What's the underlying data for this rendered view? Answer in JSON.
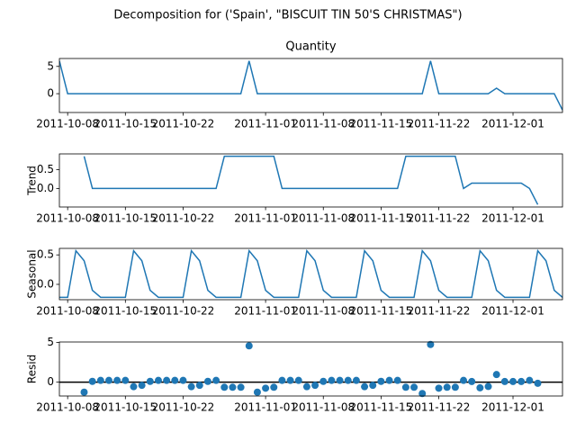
{
  "title": "Decomposition for ('Spain', \"BISCUIT TIN 50'S CHRISTMAS\")",
  "chart_data": [
    {
      "type": "line",
      "title": "Quantity",
      "color": "#1f77b4",
      "x": [
        "2011-10-07",
        "2011-10-08",
        "2011-10-09",
        "2011-10-10",
        "2011-10-11",
        "2011-10-12",
        "2011-10-13",
        "2011-10-14",
        "2011-10-15",
        "2011-10-16",
        "2011-10-17",
        "2011-10-18",
        "2011-10-19",
        "2011-10-20",
        "2011-10-21",
        "2011-10-22",
        "2011-10-23",
        "2011-10-24",
        "2011-10-25",
        "2011-10-26",
        "2011-10-27",
        "2011-10-28",
        "2011-10-29",
        "2011-10-30",
        "2011-10-31",
        "2011-11-01",
        "2011-11-02",
        "2011-11-03",
        "2011-11-04",
        "2011-11-05",
        "2011-11-06",
        "2011-11-07",
        "2011-11-08",
        "2011-11-09",
        "2011-11-10",
        "2011-11-11",
        "2011-11-12",
        "2011-11-13",
        "2011-11-14",
        "2011-11-15",
        "2011-11-16",
        "2011-11-17",
        "2011-11-18",
        "2011-11-19",
        "2011-11-20",
        "2011-11-21",
        "2011-11-22",
        "2011-11-23",
        "2011-11-24",
        "2011-11-25",
        "2011-11-26",
        "2011-11-27",
        "2011-11-28",
        "2011-11-29",
        "2011-11-30",
        "2011-12-01",
        "2011-12-02",
        "2011-12-03",
        "2011-12-04",
        "2011-12-05",
        "2011-12-06",
        "2011-12-07"
      ],
      "values": [
        6,
        0,
        0,
        0,
        0,
        0,
        0,
        0,
        0,
        0,
        0,
        0,
        0,
        0,
        0,
        0,
        0,
        0,
        0,
        0,
        0,
        0,
        0,
        6,
        0,
        0,
        0,
        0,
        0,
        0,
        0,
        0,
        0,
        0,
        0,
        0,
        0,
        0,
        0,
        0,
        0,
        0,
        0,
        0,
        0,
        6,
        0,
        0,
        0,
        0,
        0,
        0,
        0,
        1,
        0,
        0,
        0,
        0,
        0,
        0,
        0,
        -3
      ],
      "xlim": [
        "2011-10-07",
        "2011-12-07"
      ],
      "ylim": [
        -3.45,
        6.45
      ],
      "xticks": [
        "2011-10-08",
        "2011-10-15",
        "2011-10-22",
        "2011-11-01",
        "2011-11-08",
        "2011-11-15",
        "2011-11-22",
        "2011-12-01"
      ],
      "yticks": [
        0,
        5
      ]
    },
    {
      "type": "line",
      "ylabel": "Trend",
      "color": "#1f77b4",
      "x": [
        "2011-10-07",
        "2011-10-08",
        "2011-10-09",
        "2011-10-10",
        "2011-10-11",
        "2011-10-12",
        "2011-10-13",
        "2011-10-14",
        "2011-10-15",
        "2011-10-16",
        "2011-10-17",
        "2011-10-18",
        "2011-10-19",
        "2011-10-20",
        "2011-10-21",
        "2011-10-22",
        "2011-10-23",
        "2011-10-24",
        "2011-10-25",
        "2011-10-26",
        "2011-10-27",
        "2011-10-28",
        "2011-10-29",
        "2011-10-30",
        "2011-10-31",
        "2011-11-01",
        "2011-11-02",
        "2011-11-03",
        "2011-11-04",
        "2011-11-05",
        "2011-11-06",
        "2011-11-07",
        "2011-11-08",
        "2011-11-09",
        "2011-11-10",
        "2011-11-11",
        "2011-11-12",
        "2011-11-13",
        "2011-11-14",
        "2011-11-15",
        "2011-11-16",
        "2011-11-17",
        "2011-11-18",
        "2011-11-19",
        "2011-11-20",
        "2011-11-21",
        "2011-11-22",
        "2011-11-23",
        "2011-11-24",
        "2011-11-25",
        "2011-11-26",
        "2011-11-27",
        "2011-11-28",
        "2011-11-29",
        "2011-11-30",
        "2011-12-01",
        "2011-12-02",
        "2011-12-03",
        "2011-12-04",
        "2011-12-05",
        "2011-12-06",
        "2011-12-07"
      ],
      "values": [
        null,
        null,
        null,
        0.857,
        0,
        0,
        0,
        0,
        0,
        0,
        0,
        0,
        0,
        0,
        0,
        0,
        0,
        0,
        0,
        0,
        0.857,
        0.857,
        0.857,
        0.857,
        0.857,
        0.857,
        0.857,
        0,
        0,
        0,
        0,
        0,
        0,
        0,
        0,
        0,
        0,
        0,
        0,
        0,
        0,
        0,
        0.857,
        0.857,
        0.857,
        0.857,
        0.857,
        0.857,
        0.857,
        0,
        0.143,
        0.143,
        0.143,
        0.143,
        0.143,
        0.143,
        0.143,
        0,
        -0.429,
        null,
        null,
        null
      ],
      "xlim": [
        "2011-10-07",
        "2011-12-07"
      ],
      "ylim": [
        -0.493,
        0.921
      ],
      "xticks": [
        "2011-10-08",
        "2011-10-15",
        "2011-10-22",
        "2011-11-01",
        "2011-11-08",
        "2011-11-15",
        "2011-11-22",
        "2011-12-01"
      ],
      "yticks": [
        {
          "value": 0,
          "label": "0.0"
        },
        {
          "value": 0.5,
          "label": "0.5"
        }
      ]
    },
    {
      "type": "line",
      "ylabel": "Seasonal",
      "color": "#1f77b4",
      "x": [
        "2011-10-07",
        "2011-10-08",
        "2011-10-09",
        "2011-10-10",
        "2011-10-11",
        "2011-10-12",
        "2011-10-13",
        "2011-10-14",
        "2011-10-15",
        "2011-10-16",
        "2011-10-17",
        "2011-10-18",
        "2011-10-19",
        "2011-10-20",
        "2011-10-21",
        "2011-10-22",
        "2011-10-23",
        "2011-10-24",
        "2011-10-25",
        "2011-10-26",
        "2011-10-27",
        "2011-10-28",
        "2011-10-29",
        "2011-10-30",
        "2011-10-31",
        "2011-11-01",
        "2011-11-02",
        "2011-11-03",
        "2011-11-04",
        "2011-11-05",
        "2011-11-06",
        "2011-11-07",
        "2011-11-08",
        "2011-11-09",
        "2011-11-10",
        "2011-11-11",
        "2011-11-12",
        "2011-11-13",
        "2011-11-14",
        "2011-11-15",
        "2011-11-16",
        "2011-11-17",
        "2011-11-18",
        "2011-11-19",
        "2011-11-20",
        "2011-11-21",
        "2011-11-22",
        "2011-11-23",
        "2011-11-24",
        "2011-11-25",
        "2011-11-26",
        "2011-11-27",
        "2011-11-28",
        "2011-11-29",
        "2011-11-30",
        "2011-12-01",
        "2011-12-02",
        "2011-12-03",
        "2011-12-04",
        "2011-12-05",
        "2011-12-06",
        "2011-12-07"
      ],
      "values": [
        -0.22,
        -0.22,
        0.57,
        0.4,
        -0.1,
        -0.22,
        -0.22,
        -0.22,
        -0.22,
        0.57,
        0.4,
        -0.1,
        -0.22,
        -0.22,
        -0.22,
        -0.22,
        0.57,
        0.4,
        -0.1,
        -0.22,
        -0.22,
        -0.22,
        -0.22,
        0.57,
        0.4,
        -0.1,
        -0.22,
        -0.22,
        -0.22,
        -0.22,
        0.57,
        0.4,
        -0.1,
        -0.22,
        -0.22,
        -0.22,
        -0.22,
        0.57,
        0.4,
        -0.1,
        -0.22,
        -0.22,
        -0.22,
        -0.22,
        0.57,
        0.4,
        -0.1,
        -0.22,
        -0.22,
        -0.22,
        -0.22,
        0.57,
        0.4,
        -0.1,
        -0.22,
        -0.22,
        -0.22,
        -0.22,
        0.57,
        0.4,
        -0.1,
        -0.22
      ],
      "xlim": [
        "2011-10-07",
        "2011-12-07"
      ],
      "ylim": [
        -0.26,
        0.61
      ],
      "xticks": [
        "2011-10-08",
        "2011-10-15",
        "2011-10-22",
        "2011-11-01",
        "2011-11-08",
        "2011-11-15",
        "2011-11-22",
        "2011-12-01"
      ],
      "yticks": [
        {
          "value": 0,
          "label": "0.0"
        },
        {
          "value": 0.5,
          "label": "0.5"
        }
      ]
    },
    {
      "type": "scatter",
      "ylabel": "Resid",
      "color": "#1f77b4",
      "hline": 0,
      "x": [
        "2011-10-07",
        "2011-10-08",
        "2011-10-09",
        "2011-10-10",
        "2011-10-11",
        "2011-10-12",
        "2011-10-13",
        "2011-10-14",
        "2011-10-15",
        "2011-10-16",
        "2011-10-17",
        "2011-10-18",
        "2011-10-19",
        "2011-10-20",
        "2011-10-21",
        "2011-10-22",
        "2011-10-23",
        "2011-10-24",
        "2011-10-25",
        "2011-10-26",
        "2011-10-27",
        "2011-10-28",
        "2011-10-29",
        "2011-10-30",
        "2011-10-31",
        "2011-11-01",
        "2011-11-02",
        "2011-11-03",
        "2011-11-04",
        "2011-11-05",
        "2011-11-06",
        "2011-11-07",
        "2011-11-08",
        "2011-11-09",
        "2011-11-10",
        "2011-11-11",
        "2011-11-12",
        "2011-11-13",
        "2011-11-14",
        "2011-11-15",
        "2011-11-16",
        "2011-11-17",
        "2011-11-18",
        "2011-11-19",
        "2011-11-20",
        "2011-11-21",
        "2011-11-22",
        "2011-11-23",
        "2011-11-24",
        "2011-11-25",
        "2011-11-26",
        "2011-11-27",
        "2011-11-28",
        "2011-11-29",
        "2011-11-30",
        "2011-12-01",
        "2011-12-02",
        "2011-12-03",
        "2011-12-04",
        "2011-12-05",
        "2011-12-06",
        "2011-12-07"
      ],
      "values": [
        null,
        null,
        null,
        -1.26,
        0.1,
        0.22,
        0.22,
        0.22,
        0.22,
        -0.57,
        -0.4,
        0.1,
        0.22,
        0.22,
        0.22,
        0.22,
        -0.57,
        -0.4,
        0.1,
        0.22,
        -0.64,
        -0.64,
        -0.64,
        4.57,
        -1.26,
        -0.76,
        -0.64,
        0.22,
        0.22,
        0.22,
        -0.57,
        -0.4,
        0.1,
        0.22,
        0.22,
        0.22,
        0.22,
        -0.57,
        -0.4,
        0.1,
        0.22,
        0.22,
        -0.64,
        -0.64,
        -1.43,
        4.74,
        -0.76,
        -0.64,
        -0.64,
        0.22,
        0.08,
        -0.71,
        -0.54,
        0.96,
        0.08,
        0.08,
        0.08,
        0.22,
        -0.14,
        null,
        null,
        null
      ],
      "xlim": [
        "2011-10-07",
        "2011-12-07"
      ],
      "ylim": [
        -1.74,
        5.05
      ],
      "xticks": [
        "2011-10-08",
        "2011-10-15",
        "2011-10-22",
        "2011-11-01",
        "2011-11-08",
        "2011-11-15",
        "2011-11-22",
        "2011-12-01"
      ],
      "yticks": [
        0,
        5
      ]
    }
  ]
}
